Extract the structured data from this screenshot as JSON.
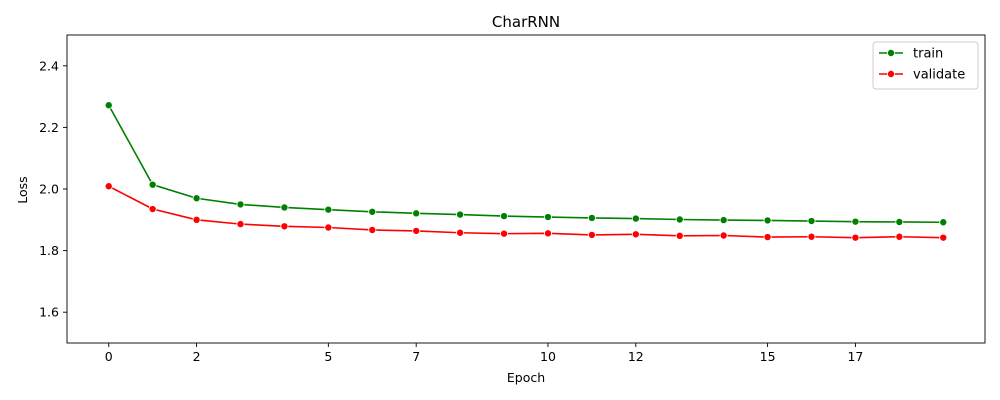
{
  "chart_data": {
    "type": "line",
    "title": "CharRNN",
    "xlabel": "Epoch",
    "ylabel": "Loss",
    "xlim": [
      -0.95,
      19.95
    ],
    "ylim": [
      1.5,
      2.5
    ],
    "x": [
      0,
      1,
      2,
      3,
      4,
      5,
      6,
      7,
      8,
      9,
      10,
      11,
      12,
      13,
      14,
      15,
      16,
      17,
      18,
      19
    ],
    "xticks": [
      0,
      2,
      5,
      7,
      10,
      12,
      15,
      17
    ],
    "xtick_labels": [
      "0",
      "2",
      "5",
      "7",
      "10",
      "12",
      "15",
      "17"
    ],
    "yticks": [
      1.6,
      1.8,
      2.0,
      2.2,
      2.4
    ],
    "ytick_labels": [
      "1.6",
      "1.8",
      "2.0",
      "2.2",
      "2.4"
    ],
    "legend_position": "top-right",
    "series": [
      {
        "name": "train",
        "color": "#008000",
        "values": [
          2.272,
          2.014,
          1.97,
          1.95,
          1.94,
          1.933,
          1.926,
          1.921,
          1.917,
          1.912,
          1.909,
          1.906,
          1.904,
          1.901,
          1.899,
          1.898,
          1.896,
          1.894,
          1.893,
          1.892
        ]
      },
      {
        "name": "validate",
        "color": "#ff0000",
        "values": [
          2.009,
          1.935,
          1.9,
          1.886,
          1.879,
          1.875,
          1.867,
          1.864,
          1.858,
          1.855,
          1.856,
          1.851,
          1.853,
          1.848,
          1.849,
          1.844,
          1.845,
          1.842,
          1.845,
          1.842
        ]
      }
    ]
  }
}
